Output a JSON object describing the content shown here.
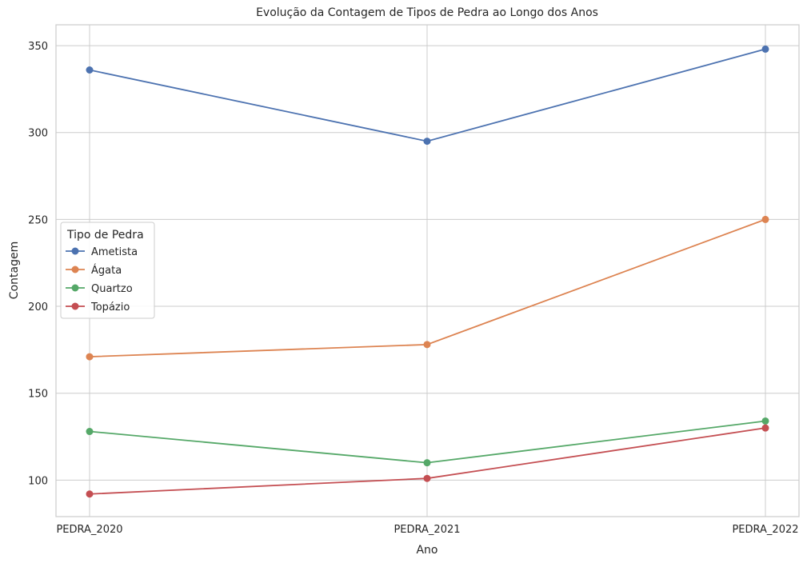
{
  "chart_data": {
    "type": "line",
    "title": "Evolução da Contagem de Tipos de Pedra ao Longo dos Anos",
    "xlabel": "Ano",
    "ylabel": "Contagem",
    "categories": [
      "PEDRA_2020",
      "PEDRA_2021",
      "PEDRA_2022"
    ],
    "ylim": [
      79,
      362
    ],
    "yticks": [
      100,
      150,
      200,
      250,
      300,
      350
    ],
    "grid": true,
    "legend": {
      "title": "Tipo de Pedra",
      "position": "center-left"
    },
    "series": [
      {
        "name": "Ametista",
        "color": "#4c72b0",
        "values": [
          336,
          295,
          348
        ]
      },
      {
        "name": "Ágata",
        "color": "#dd8452",
        "values": [
          171,
          178,
          250
        ]
      },
      {
        "name": "Quartzo",
        "color": "#55a868",
        "values": [
          128,
          110,
          134
        ]
      },
      {
        "name": "Topázio",
        "color": "#c44e52",
        "values": [
          92,
          101,
          130
        ]
      }
    ]
  }
}
